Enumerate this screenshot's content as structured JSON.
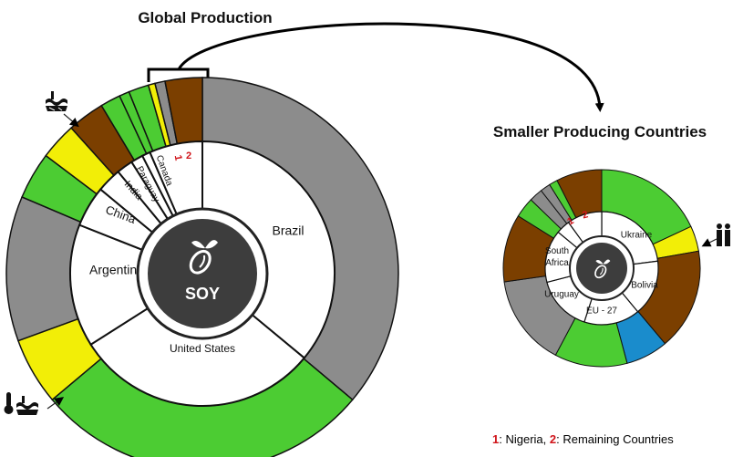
{
  "titles": {
    "global": "Global Production",
    "smaller": "Smaller Producing Countries"
  },
  "center": {
    "main": "SOY",
    "icon": "soybean-sprout-icon"
  },
  "colors": {
    "green": "#4ccc33",
    "yellow": "#f2ee07",
    "brown": "#7b3f00",
    "gray": "#8c8c8c",
    "blue": "#1a8ccc",
    "dark": "#3d3d3d",
    "red_label": "#d0141a"
  },
  "main_countries": [
    {
      "name": "Brazil",
      "share": 36
    },
    {
      "name": "United States",
      "share": 30
    },
    {
      "name": "Argentina",
      "share": 15
    },
    {
      "name": "China",
      "share": 5
    },
    {
      "name": "India",
      "share": 3
    },
    {
      "name": "Paraguay",
      "share": 2
    },
    {
      "name": "Canada",
      "share": 1.5
    },
    {
      "name": "1",
      "share": 1
    },
    {
      "name": "2",
      "share": 6.5
    }
  ],
  "smaller_countries": [
    {
      "name": "Ukraine",
      "share": 23
    },
    {
      "name": "Bolivia",
      "share": 16
    },
    {
      "name": "EU - 27",
      "share": 16
    },
    {
      "name": "Uruguay",
      "share": 16
    },
    {
      "name": "South Africa",
      "share": 15
    },
    {
      "name": "1",
      "share": 4
    },
    {
      "name": "2",
      "share": 10
    }
  ],
  "footnote": {
    "n1": "1",
    "t1": ": Nigeria, ",
    "n2": "2",
    "t2": ": Remaining Countries"
  },
  "icons": {
    "top_left": "flood-icon",
    "bottom_left": "temperature-flood-icon",
    "right": "people-icon"
  }
}
